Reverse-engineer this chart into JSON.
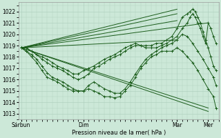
{
  "bg_color": "#cce8d8",
  "grid_color": "#aaccbb",
  "line_color": "#1a5c1a",
  "marker_color": "#1a5c1a",
  "xlabel_text": "Pression niveau de la mer( hPa )",
  "xtick_labels": [
    "Sárbun",
    "Dim",
    "Mar",
    "Mer"
  ],
  "xtick_positions": [
    0,
    48,
    120,
    144
  ],
  "ylim": [
    1012.5,
    1022.8
  ],
  "yticks": [
    1013,
    1014,
    1015,
    1016,
    1017,
    1018,
    1019,
    1020,
    1021,
    1022
  ],
  "xlim": [
    -2,
    152
  ],
  "straight_lines": [
    {
      "x": [
        0,
        144
      ],
      "y": [
        1018.8,
        1013.2
      ]
    },
    {
      "x": [
        0,
        144
      ],
      "y": [
        1018.8,
        1013.5
      ]
    },
    {
      "x": [
        0,
        144
      ],
      "y": [
        1018.8,
        1021.0
      ]
    },
    {
      "x": [
        0,
        120
      ],
      "y": [
        1018.8,
        1022.2
      ]
    },
    {
      "x": [
        0,
        120
      ],
      "y": [
        1018.8,
        1021.8
      ]
    },
    {
      "x": [
        0,
        120
      ],
      "y": [
        1018.8,
        1021.2
      ]
    },
    {
      "x": [
        0,
        120
      ],
      "y": [
        1018.8,
        1019.5
      ]
    }
  ],
  "detail_lines": [
    {
      "x": [
        0,
        4,
        8,
        12,
        16,
        20,
        24,
        28,
        32,
        36,
        40,
        44,
        48,
        52,
        56,
        60,
        64,
        68,
        72,
        76,
        80,
        84,
        88,
        92,
        96,
        100,
        104,
        108,
        112,
        116,
        120,
        124,
        128,
        132,
        136,
        140,
        144,
        148,
        150
      ],
      "y": [
        1018.8,
        1018.5,
        1018.2,
        1017.8,
        1017.2,
        1016.6,
        1016.2,
        1016.0,
        1015.8,
        1015.5,
        1015.2,
        1015.0,
        1015.0,
        1015.2,
        1015.0,
        1014.8,
        1014.5,
        1014.5,
        1014.4,
        1014.5,
        1015.0,
        1015.5,
        1016.2,
        1017.0,
        1017.5,
        1018.0,
        1018.2,
        1018.5,
        1018.5,
        1018.5,
        1018.8,
        1018.5,
        1018.0,
        1017.5,
        1016.8,
        1016.0,
        1015.2,
        1014.5,
        1013.5
      ]
    },
    {
      "x": [
        0,
        4,
        8,
        12,
        16,
        20,
        24,
        28,
        32,
        36,
        40,
        44,
        48,
        52,
        56,
        60,
        64,
        68,
        72,
        76,
        80,
        84,
        88,
        92,
        96,
        100,
        104,
        108,
        112,
        116,
        120,
        124,
        128,
        132,
        136,
        140,
        144,
        148,
        150
      ],
      "y": [
        1018.8,
        1018.5,
        1018.0,
        1017.5,
        1016.8,
        1016.2,
        1016.0,
        1015.8,
        1015.5,
        1015.2,
        1015.0,
        1015.0,
        1015.0,
        1015.5,
        1015.8,
        1015.5,
        1015.2,
        1015.0,
        1014.8,
        1014.8,
        1015.2,
        1015.8,
        1016.5,
        1017.2,
        1017.8,
        1018.2,
        1018.5,
        1018.8,
        1019.0,
        1019.2,
        1019.5,
        1020.0,
        1019.8,
        1019.2,
        1018.5,
        1017.8,
        1017.0,
        1016.2,
        1015.5
      ]
    },
    {
      "x": [
        0,
        4,
        8,
        12,
        16,
        20,
        24,
        28,
        32,
        36,
        40,
        44,
        48,
        52,
        56,
        60,
        64,
        68,
        72,
        76,
        80,
        84,
        88,
        92,
        96,
        100,
        104,
        108,
        112,
        116,
        120,
        124,
        128,
        130,
        132,
        134,
        136,
        138,
        140,
        142,
        144,
        146,
        148,
        150
      ],
      "y": [
        1018.8,
        1018.8,
        1018.5,
        1018.2,
        1017.8,
        1017.5,
        1017.2,
        1017.0,
        1016.8,
        1016.5,
        1016.2,
        1016.0,
        1016.2,
        1016.5,
        1017.0,
        1017.2,
        1017.5,
        1017.8,
        1018.0,
        1018.2,
        1018.5,
        1018.8,
        1019.0,
        1019.0,
        1019.0,
        1019.0,
        1019.2,
        1019.2,
        1019.5,
        1019.8,
        1020.5,
        1021.5,
        1021.8,
        1022.0,
        1022.2,
        1022.0,
        1021.5,
        1021.0,
        1020.2,
        1019.5,
        1018.8,
        1018.0,
        1017.2,
        1016.8
      ]
    },
    {
      "x": [
        0,
        4,
        8,
        12,
        16,
        20,
        24,
        28,
        32,
        36,
        40,
        44,
        48,
        52,
        56,
        60,
        64,
        68,
        72,
        76,
        80,
        84,
        88,
        92,
        96,
        100,
        104,
        108,
        112,
        116,
        120,
        124,
        128,
        130,
        132,
        134,
        136,
        138,
        140,
        142,
        144,
        146,
        148,
        150
      ],
      "y": [
        1018.8,
        1018.8,
        1018.5,
        1018.2,
        1018.0,
        1017.8,
        1017.5,
        1017.2,
        1017.0,
        1016.8,
        1016.5,
        1016.5,
        1016.8,
        1017.0,
        1017.2,
        1017.5,
        1017.8,
        1018.0,
        1018.2,
        1018.5,
        1018.8,
        1019.0,
        1019.2,
        1019.0,
        1018.8,
        1018.8,
        1018.8,
        1019.0,
        1019.2,
        1019.5,
        1019.8,
        1020.5,
        1021.0,
        1021.5,
        1021.8,
        1021.5,
        1021.0,
        1020.5,
        1019.8,
        1019.2,
        1021.0,
        1020.5,
        1019.8,
        1019.2
      ]
    }
  ]
}
